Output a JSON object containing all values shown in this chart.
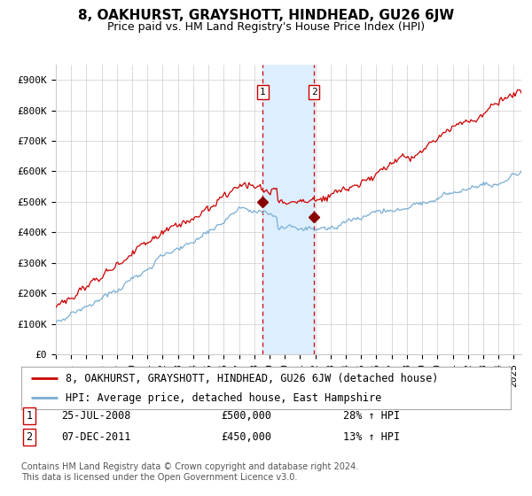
{
  "title": "8, OAKHURST, GRAYSHOTT, HINDHEAD, GU26 6JW",
  "subtitle": "Price paid vs. HM Land Registry's House Price Index (HPI)",
  "ylabel_ticks": [
    "£0",
    "£100K",
    "£200K",
    "£300K",
    "£400K",
    "£500K",
    "£600K",
    "£700K",
    "£800K",
    "£900K"
  ],
  "ylim": [
    0,
    950000
  ],
  "xlim_start": 1995.0,
  "xlim_end": 2025.5,
  "sale1_date": 2008.56,
  "sale1_price": 500000,
  "sale1_label": "25-JUL-2008",
  "sale1_pct": "28% ↑ HPI",
  "sale2_date": 2011.92,
  "sale2_price": 450000,
  "sale2_label": "07-DEC-2011",
  "sale2_pct": "13% ↑ HPI",
  "red_line_color": "#cc0000",
  "blue_line_color": "#7aafd4",
  "shade_color": "#ddeeff",
  "dashed_color": "#cc0000",
  "marker_color": "#880000",
  "grid_color": "#cccccc",
  "bg_color": "#ffffff",
  "legend1_label": "8, OAKHURST, GRAYSHOTT, HINDHEAD, GU26 6JW (detached house)",
  "legend2_label": "HPI: Average price, detached house, East Hampshire",
  "footnote": "Contains HM Land Registry data © Crown copyright and database right 2024.\nThis data is licensed under the Open Government Licence v3.0.",
  "title_fontsize": 11,
  "subtitle_fontsize": 9,
  "tick_fontsize": 8,
  "legend_fontsize": 8.5,
  "footnote_fontsize": 7
}
